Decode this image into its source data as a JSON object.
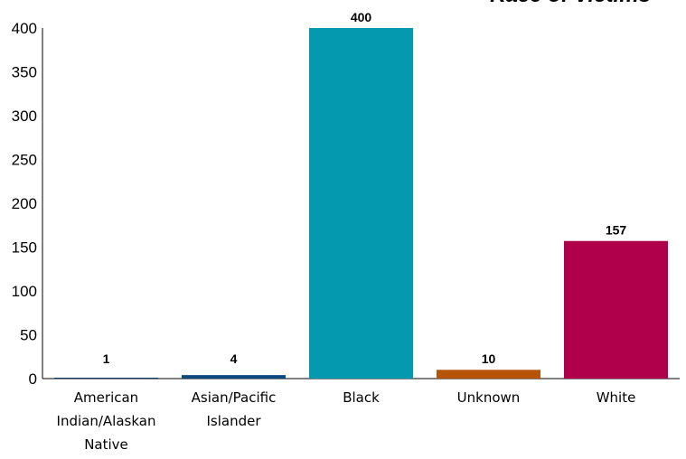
{
  "chart_data": {
    "type": "bar",
    "title": "Race of Victims",
    "categories": [
      [
        "American",
        "Indian/Alaskan",
        "Native"
      ],
      [
        "Asian/Pacific",
        "Islander"
      ],
      [
        "Black"
      ],
      [
        "Unknown"
      ],
      [
        "White"
      ]
    ],
    "values": [
      1,
      4,
      400,
      10,
      157
    ],
    "colors": [
      "#0b3d73",
      "#0b4a80",
      "#0599b0",
      "#b55308",
      "#b0004b"
    ],
    "ylim": [
      0,
      400
    ],
    "yticks": [
      "0",
      "50",
      "100",
      "150",
      "200",
      "250",
      "300",
      "350",
      "400"
    ],
    "xlabel": "",
    "ylabel": "",
    "grid": false,
    "legend": "none"
  }
}
